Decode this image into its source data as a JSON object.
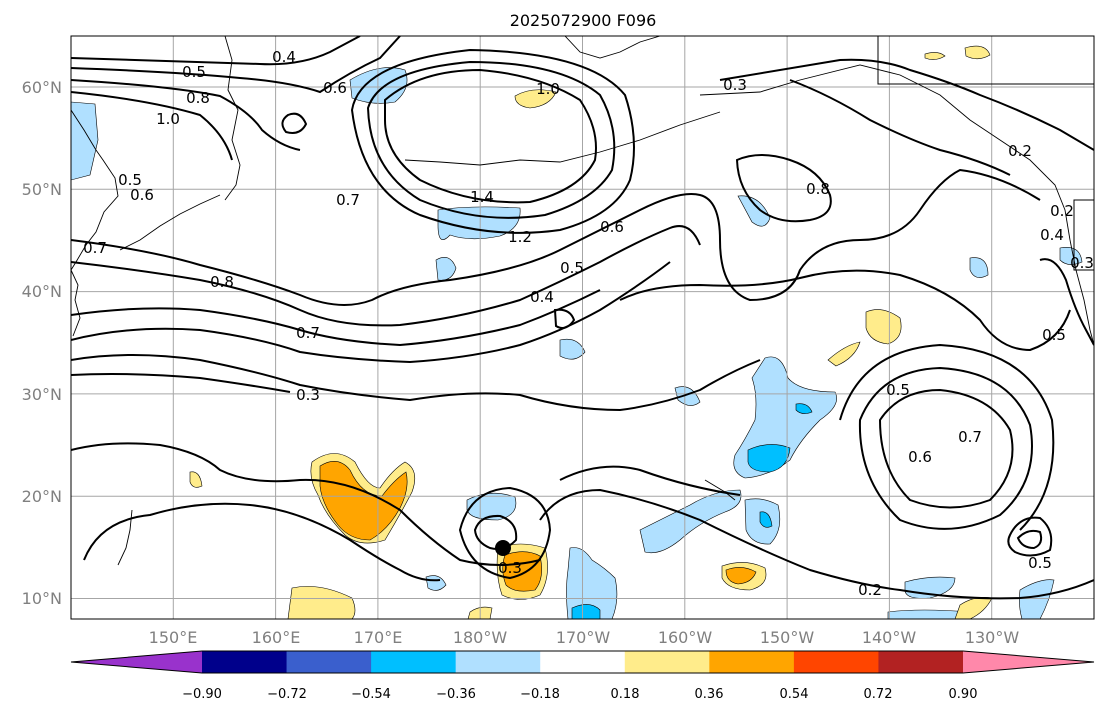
{
  "title": "2025072900 F096",
  "map": {
    "lon_ticks": [
      "150°E",
      "160°E",
      "170°E",
      "180°W",
      "170°W",
      "160°W",
      "150°W",
      "140°W",
      "130°W"
    ],
    "lat_ticks": [
      "10°N",
      "20°N",
      "30°N",
      "40°N",
      "50°N",
      "60°N"
    ],
    "lon_range": [
      140,
      240
    ],
    "lat_range": [
      8,
      65
    ],
    "grid": true,
    "contour_labels": [
      "0.4",
      "0.5",
      "0.8",
      "1.0",
      "0.6",
      "0.5",
      "0.6",
      "0.7",
      "0.7",
      "1.4",
      "1.2",
      "1.0",
      "0.3",
      "0.2",
      "0.2",
      "0.8",
      "0.6",
      "0.5",
      "0.4",
      "0.8",
      "0.7",
      "0.3",
      "0.5",
      "0.5",
      "0.6",
      "0.7",
      "0.3",
      "0.5",
      "0.2",
      "0.4",
      "0.3"
    ],
    "storm_marker": "tropical cyclone center"
  },
  "colorbar": {
    "tick_labels": [
      "−0.90",
      "−0.72",
      "−0.54",
      "−0.36",
      "−0.18",
      "0.18",
      "0.36",
      "0.54",
      "0.72",
      "0.90"
    ],
    "colors": [
      "#9932cc",
      "#00008b",
      "#3a5fcd",
      "#00bfff",
      "#b0e0ff",
      "#ffffff",
      "#ffec8b",
      "#ffa500",
      "#ff4500",
      "#b22222",
      "#ff88aa"
    ],
    "extend": "both"
  }
}
